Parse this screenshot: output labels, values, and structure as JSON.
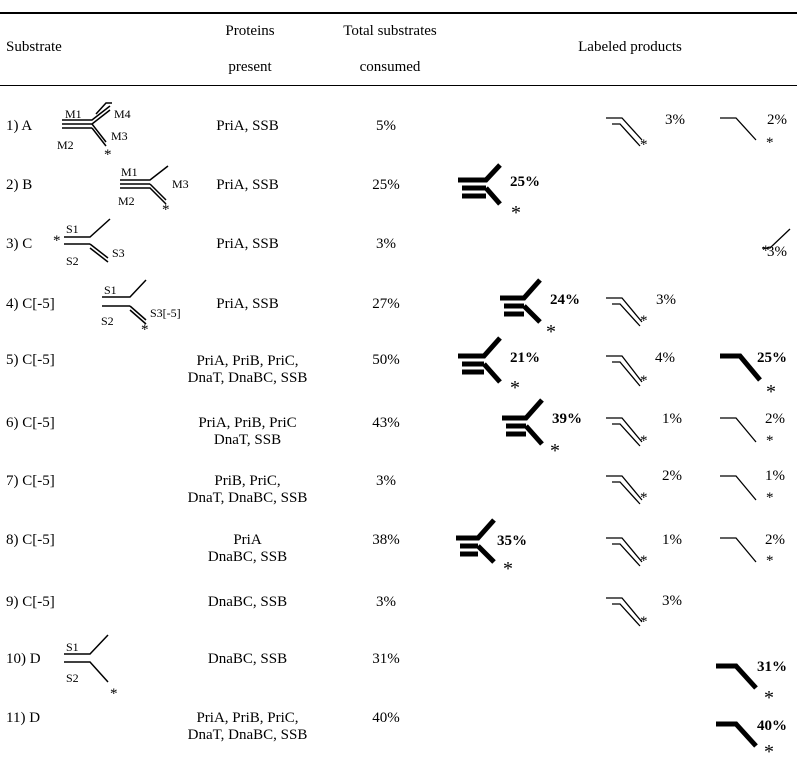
{
  "header": {
    "substrate": "Substrate",
    "proteins_line1": "Proteins",
    "proteins_line2": "present",
    "total_line1": "Total  substrates",
    "total_line2": "consumed",
    "labeled": "Labeled products"
  },
  "rows": [
    {
      "substrate": "1) A",
      "proteins": [
        "PriA, SSB"
      ],
      "consumed": "5%",
      "products": [
        "3%",
        "2%"
      ]
    },
    {
      "substrate": "2) B",
      "proteins": [
        "PriA, SSB"
      ],
      "consumed": "25%",
      "products": [
        "25%"
      ]
    },
    {
      "substrate": "3) C",
      "proteins": [
        "PriA, SSB"
      ],
      "consumed": "3%",
      "products": [
        "3%"
      ]
    },
    {
      "substrate": "4) C[-5]",
      "proteins": [
        "PriA, SSB"
      ],
      "consumed": "27%",
      "products": [
        "24%",
        "3%"
      ]
    },
    {
      "substrate": "5) C[-5]",
      "proteins": [
        "PriA, PriB, PriC,",
        "DnaT, DnaBC, SSB"
      ],
      "consumed": "50%",
      "products": [
        "21%",
        "4%",
        "25%"
      ]
    },
    {
      "substrate": "6) C[-5]",
      "proteins": [
        "PriA, PriB, PriC",
        "DnaT, SSB"
      ],
      "consumed": "43%",
      "products": [
        "39%",
        "1%",
        "2%"
      ]
    },
    {
      "substrate": "7) C[-5]",
      "proteins": [
        "PriB, PriC,",
        "DnaT, DnaBC, SSB"
      ],
      "consumed": "3%",
      "products": [
        "2%",
        "1%"
      ]
    },
    {
      "substrate": "8) C[-5]",
      "proteins": [
        "PriA",
        "DnaBC, SSB"
      ],
      "consumed": "38%",
      "products": [
        "35%",
        "1%",
        "2%"
      ]
    },
    {
      "substrate": "9) C[-5]",
      "proteins": [
        "DnaBC, SSB"
      ],
      "consumed": "3%",
      "products": [
        "3%"
      ]
    },
    {
      "substrate": "10) D",
      "proteins": [
        "DnaBC, SSB"
      ],
      "consumed": "31%",
      "products": [
        "31%"
      ]
    },
    {
      "substrate": "11) D",
      "proteins": [
        "PriA, PriB, PriC,",
        "DnaT, DnaBC, SSB"
      ],
      "consumed": "40%",
      "products": [
        "40%"
      ]
    }
  ],
  "strand_labels": {
    "a": [
      "M1",
      "M4",
      "M2",
      "M3"
    ],
    "b": [
      "M1",
      "M2",
      "M3"
    ],
    "c": [
      "S1",
      "S2",
      "S3"
    ],
    "c5": [
      "S1",
      "S2",
      "S3[-5]"
    ],
    "d": [
      "S1",
      "S2"
    ],
    "star": "*"
  }
}
